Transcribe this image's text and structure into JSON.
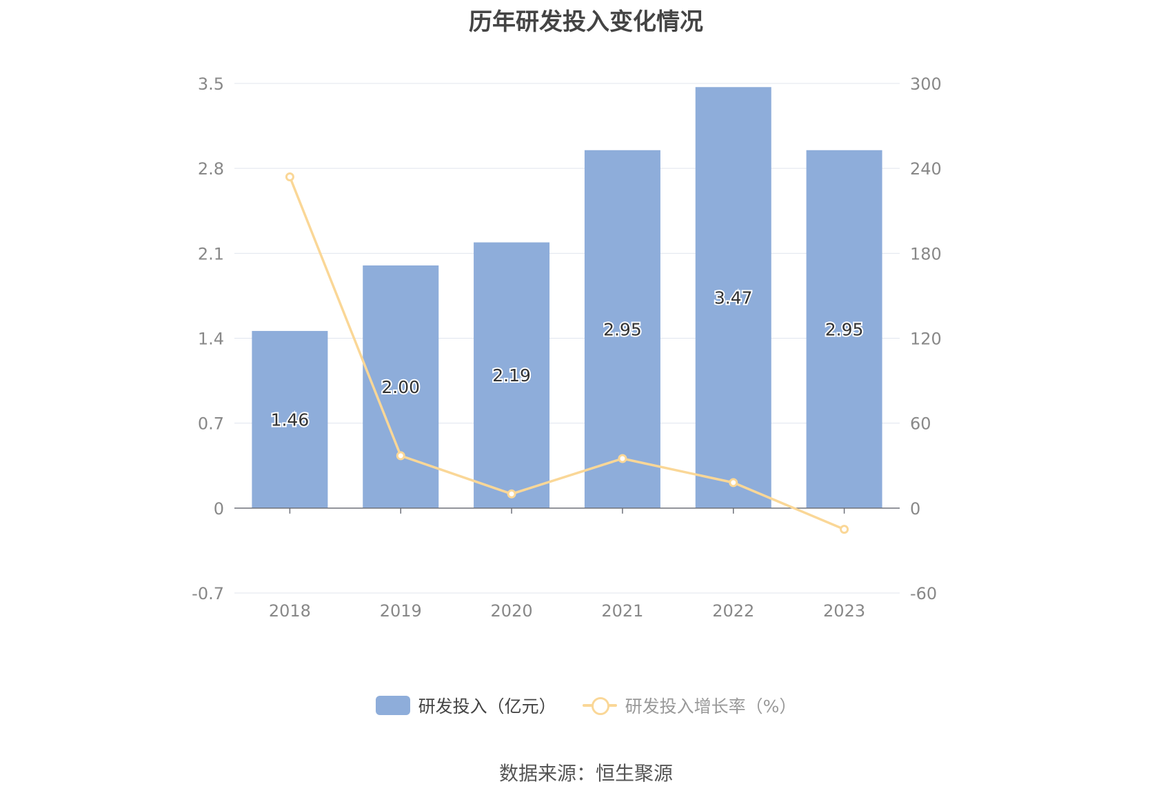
{
  "title": "历年研发投入变化情况",
  "source": "数据来源：恒生聚源",
  "colors": {
    "bar": "#8eadda",
    "line": "#fad797",
    "grid": "#e0e4ee",
    "axis_text": "#888888"
  },
  "chart_data": {
    "type": "bar",
    "title": "历年研发投入变化情况",
    "categories": [
      "2018",
      "2019",
      "2020",
      "2021",
      "2022",
      "2023"
    ],
    "series": [
      {
        "name": "研发投入（亿元）",
        "type": "bar",
        "axis": "left",
        "values": [
          1.46,
          2.0,
          2.19,
          2.95,
          3.47,
          2.95
        ],
        "labels": [
          "1.46",
          "2.00",
          "2.19",
          "2.95",
          "3.47",
          "2.95"
        ]
      },
      {
        "name": "研发投入增长率（%）",
        "type": "line",
        "axis": "right",
        "values": [
          234,
          37,
          10,
          35,
          18,
          -15
        ]
      }
    ],
    "y_left": {
      "ticks": [
        "-0.7",
        "0",
        "0.7",
        "1.4",
        "2.1",
        "2.8",
        "3.5"
      ],
      "ylim": [
        -0.7,
        3.5
      ]
    },
    "y_right": {
      "ticks": [
        "-60",
        "0",
        "60",
        "120",
        "180",
        "240",
        "300"
      ],
      "ylim": [
        -60,
        300
      ]
    },
    "grid": true,
    "legend_position": "bottom"
  }
}
